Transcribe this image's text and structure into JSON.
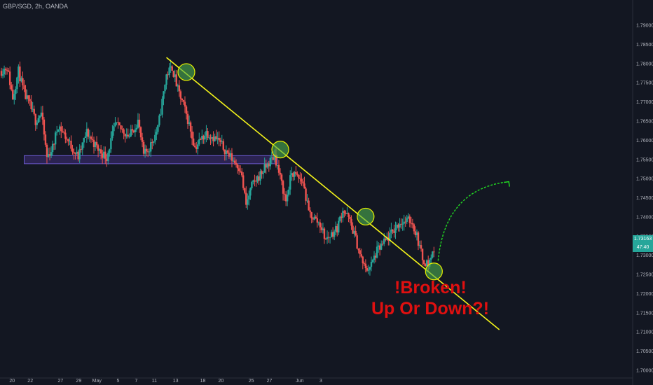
{
  "header": {
    "symbol_line": "GBP/SGD, 2h, OANDA"
  },
  "last_price": {
    "price": "1.73163",
    "countdown": "47:40"
  },
  "annotations": {
    "line1": "!Broken!",
    "line2": "Up Or Down?!"
  },
  "colors": {
    "background": "#131722",
    "up_candle": "#26a69a",
    "down_candle": "#ef5350",
    "trendline": "#f5f51a",
    "touch_circle": "#4caf50",
    "zone_fill": "#3f2e7a",
    "zone_border": "#6a5acd",
    "projection_arrow": "#22dd22",
    "annotation_text": "#e01010"
  },
  "chart_data": {
    "type": "candlestick",
    "symbol": "GBP/SGD",
    "timeframe": "2h",
    "source": "OANDA",
    "y_ticks": [
      1.7,
      1.705,
      1.71,
      1.715,
      1.72,
      1.725,
      1.73,
      1.735,
      1.74,
      1.745,
      1.75,
      1.755,
      1.76,
      1.765,
      1.77,
      1.775,
      1.78,
      1.785,
      1.79
    ],
    "ylim": [
      1.6979,
      1.7965
    ],
    "x_ticks": [
      "20",
      "22",
      "27",
      "29",
      "May",
      "5",
      "7",
      "11",
      "13",
      "18",
      "20",
      "25",
      "27",
      "Jun",
      "3"
    ],
    "last_price": 1.73163,
    "price_path": [
      {
        "t": 0,
        "p": 1.778
      },
      {
        "t": 2,
        "p": 1.779
      },
      {
        "t": 4,
        "p": 1.771
      },
      {
        "t": 6,
        "p": 1.778
      },
      {
        "t": 8,
        "p": 1.772
      },
      {
        "t": 10,
        "p": 1.769
      },
      {
        "t": 12,
        "p": 1.765
      },
      {
        "t": 14,
        "p": 1.767
      },
      {
        "t": 16,
        "p": 1.7555
      },
      {
        "t": 18,
        "p": 1.758
      },
      {
        "t": 20,
        "p": 1.764
      },
      {
        "t": 24,
        "p": 1.759
      },
      {
        "t": 27,
        "p": 1.7555
      },
      {
        "t": 30,
        "p": 1.762
      },
      {
        "t": 34,
        "p": 1.7575
      },
      {
        "t": 37,
        "p": 1.7555
      },
      {
        "t": 40,
        "p": 1.764
      },
      {
        "t": 45,
        "p": 1.761
      },
      {
        "t": 48,
        "p": 1.765
      },
      {
        "t": 50,
        "p": 1.756
      },
      {
        "t": 52,
        "p": 1.758
      },
      {
        "t": 55,
        "p": 1.763
      },
      {
        "t": 58,
        "p": 1.777
      },
      {
        "t": 60,
        "p": 1.779
      },
      {
        "t": 62,
        "p": 1.773
      },
      {
        "t": 64,
        "p": 1.769
      },
      {
        "t": 66,
        "p": 1.764
      },
      {
        "t": 68,
        "p": 1.758
      },
      {
        "t": 72,
        "p": 1.762
      },
      {
        "t": 76,
        "p": 1.76
      },
      {
        "t": 80,
        "p": 1.756
      },
      {
        "t": 84,
        "p": 1.7525
      },
      {
        "t": 86,
        "p": 1.743
      },
      {
        "t": 88,
        "p": 1.748
      },
      {
        "t": 92,
        "p": 1.752
      },
      {
        "t": 96,
        "p": 1.756
      },
      {
        "t": 98,
        "p": 1.75
      },
      {
        "t": 100,
        "p": 1.744
      },
      {
        "t": 102,
        "p": 1.7515
      },
      {
        "t": 106,
        "p": 1.749
      },
      {
        "t": 108,
        "p": 1.741
      },
      {
        "t": 112,
        "p": 1.738
      },
      {
        "t": 114,
        "p": 1.734
      },
      {
        "t": 118,
        "p": 1.737
      },
      {
        "t": 120,
        "p": 1.742
      },
      {
        "t": 122,
        "p": 1.7395
      },
      {
        "t": 124,
        "p": 1.7355
      },
      {
        "t": 126,
        "p": 1.73
      },
      {
        "t": 128,
        "p": 1.726
      },
      {
        "t": 130,
        "p": 1.7275
      },
      {
        "t": 132,
        "p": 1.731
      },
      {
        "t": 136,
        "p": 1.7345
      },
      {
        "t": 140,
        "p": 1.7385
      },
      {
        "t": 144,
        "p": 1.739
      },
      {
        "t": 146,
        "p": 1.735
      },
      {
        "t": 148,
        "p": 1.729
      },
      {
        "t": 150,
        "p": 1.7275
      },
      {
        "t": 152,
        "p": 1.7316
      }
    ],
    "annotations": {
      "trendline": {
        "from": {
          "t": 58,
          "p": 1.7815
        },
        "to": {
          "t": 175,
          "p": 1.7105
        }
      },
      "zone": {
        "from_t": 17,
        "to_t": 195,
        "p_top": 1.7559,
        "p_bottom": 1.7538
      },
      "touches": [
        {
          "t": 65,
          "p": 1.7777
        },
        {
          "t": 98,
          "p": 1.7575
        },
        {
          "t": 128,
          "p": 1.74
        },
        {
          "t": 152,
          "p": 1.7257
        }
      ],
      "projection": {
        "from": {
          "t": 152,
          "p": 1.7285
        },
        "to": {
          "t": 166,
          "p": 1.7491
        }
      }
    }
  }
}
